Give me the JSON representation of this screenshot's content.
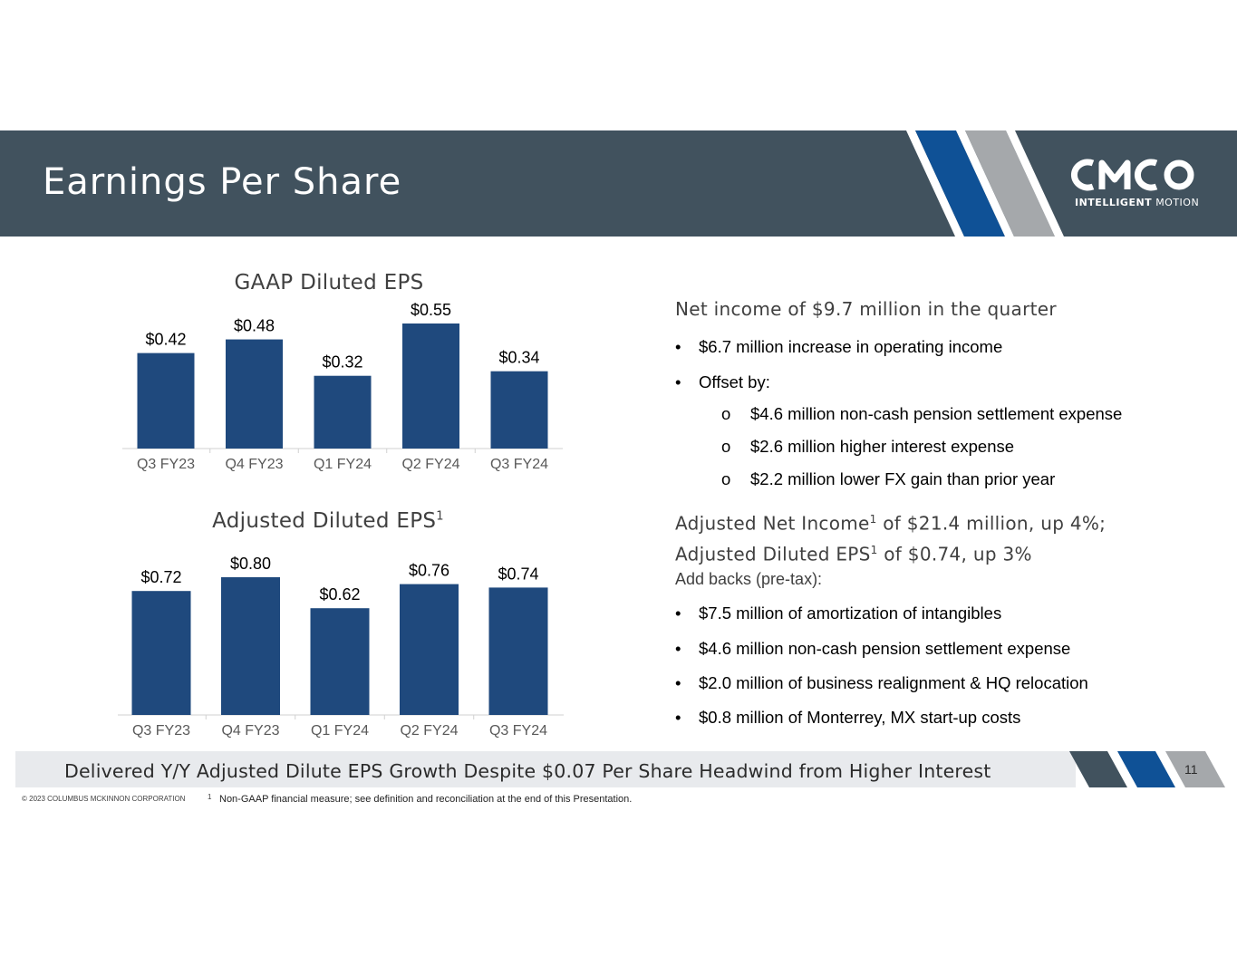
{
  "header": {
    "title": "Earnings Per Share"
  },
  "logo": {
    "mark": "CMCO",
    "tagline_bold": "INTELLIGENT",
    "tagline_rest": "MOTION"
  },
  "chart_data": [
    {
      "type": "bar",
      "title": "GAAP Diluted EPS",
      "title_sup": "",
      "categories": [
        "Q3 FY23",
        "Q4 FY23",
        "Q1 FY24",
        "Q2 FY24",
        "Q3 FY24"
      ],
      "values": [
        0.42,
        0.48,
        0.32,
        0.55,
        0.34
      ],
      "labels": [
        "$0.42",
        "$0.48",
        "$0.32",
        "$0.55",
        "$0.34"
      ],
      "xlabel": "",
      "ylabel": "",
      "ylim": [
        0,
        0.55
      ],
      "grid": false,
      "bar_color": "#1f497d"
    },
    {
      "type": "bar",
      "title": "Adjusted Diluted EPS",
      "title_sup": "1",
      "categories": [
        "Q3 FY23",
        "Q4 FY23",
        "Q1 FY24",
        "Q2 FY24",
        "Q3 FY24"
      ],
      "values": [
        0.72,
        0.8,
        0.62,
        0.76,
        0.74
      ],
      "labels": [
        "$0.72",
        "$0.80",
        "$0.62",
        "$0.76",
        "$0.74"
      ],
      "xlabel": "",
      "ylabel": "",
      "ylim": [
        0,
        0.8
      ],
      "grid": false,
      "bar_color": "#1f497d"
    }
  ],
  "right": {
    "heading1": "Net income of $9.7 million in the quarter",
    "bullet1": "$6.7 million increase in operating income",
    "bullet2": "Offset by:",
    "sub1": "$4.6 million non-cash pension settlement expense",
    "sub2": "$2.6 million higher interest expense",
    "sub3": "$2.2 million lower FX gain than prior year",
    "heading2a_pre": "Adjusted Net Income",
    "heading2a_sup": "1",
    "heading2a_post": " of $21.4 million, up 4%;",
    "heading2b_pre": "Adjusted Diluted EPS",
    "heading2b_sup": "1",
    "heading2b_post": " of $0.74, up 3%",
    "addbacks": "Add backs (pre-tax):",
    "bullet3": "$7.5 million of amortization of intangibles",
    "bullet4": "$4.6 million non-cash pension settlement expense",
    "bullet5": "$2.0 million of business realignment & HQ relocation",
    "bullet6": "$0.8 million of Monterrey, MX start-up costs",
    "dot": "•",
    "sub_marker": "o"
  },
  "banner": {
    "text": "Delivered Y/Y Adjusted Dilute EPS Growth Despite $0.07 Per Share Headwind from Higher Interest"
  },
  "page_number": "11",
  "footer": {
    "copyright": "© 2023 COLUMBUS MCKINNON CORPORATION",
    "footnote_marker": "1",
    "footnote": "Non-GAAP financial measure; see definition and reconciliation at the end of this Presentation."
  }
}
